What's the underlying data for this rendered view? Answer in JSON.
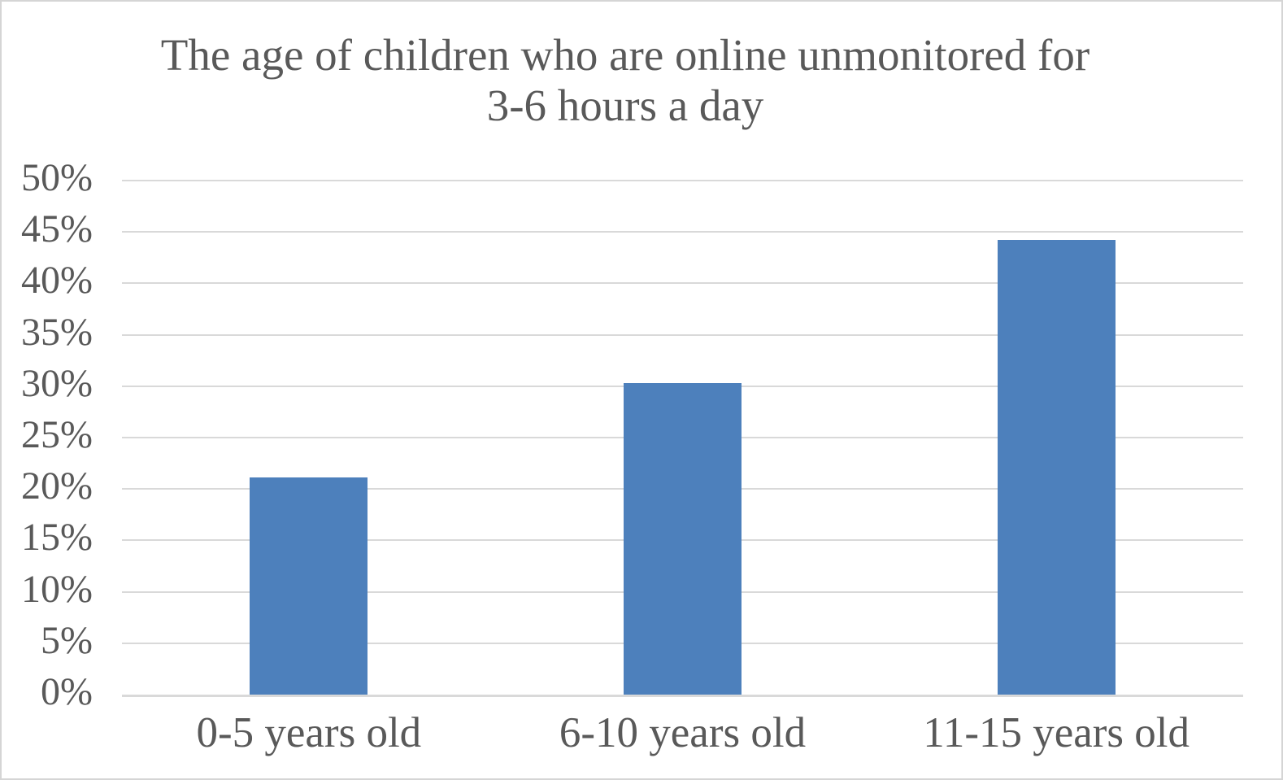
{
  "chart_data": {
    "type": "bar",
    "title": "The age of children who are online unmonitored for 3-6 hours a day",
    "title_lines": [
      "The age of children who are online unmonitored for",
      "3-6 hours a day"
    ],
    "categories": [
      "0-5 years old",
      "6-10 years old",
      "11-15 years old"
    ],
    "values": [
      21.1,
      30.3,
      44.2
    ],
    "xlabel": "",
    "ylabel": "",
    "y_axis": {
      "min": 0,
      "max": 50,
      "step": 5,
      "tick_labels": [
        "0%",
        "5%",
        "10%",
        "15%",
        "20%",
        "25%",
        "30%",
        "35%",
        "40%",
        "45%",
        "50%"
      ]
    },
    "grid": true,
    "legend": false,
    "colors": {
      "bar": "#4D80BC",
      "gridline": "#D9D9D9",
      "axis_line": "#D9D9D9",
      "text": "#595959",
      "background": "#FFFFFF",
      "border": "#D5D5D5"
    }
  }
}
